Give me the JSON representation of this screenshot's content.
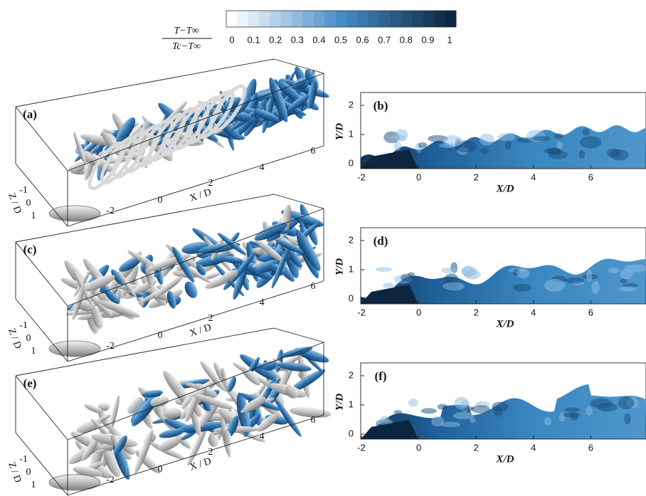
{
  "colorbar": {
    "label_numerator": "T−T∞",
    "label_denominator": "Tc−T∞",
    "ticks": [
      "0",
      "0.1",
      "0.2",
      "0.3",
      "0.4",
      "0.5",
      "0.6",
      "0.7",
      "0.8",
      "0.9",
      "1"
    ]
  },
  "panels_3d": [
    {
      "label": "(a)",
      "x_axis_label": "X / D",
      "z_axis_label": "Z / D",
      "x_ticks": [
        "-2",
        "0",
        "2",
        "4",
        "6"
      ],
      "z_ticks": [
        "-1",
        "0",
        "1"
      ]
    },
    {
      "label": "(c)",
      "x_axis_label": "X / D",
      "z_axis_label": "Z / D",
      "x_ticks": [
        "-2",
        "0",
        "2",
        "4",
        "6"
      ],
      "z_ticks": [
        "-1",
        "0",
        "1"
      ]
    },
    {
      "label": "(e)",
      "x_axis_label": "X / D",
      "z_axis_label": "Z / D",
      "x_ticks": [
        "-2",
        "0",
        "2",
        "4",
        "6"
      ],
      "z_ticks": [
        "-1",
        "0",
        "1"
      ]
    }
  ],
  "panels_2d": [
    {
      "label": "(b)",
      "x_axis_label": "X/D",
      "y_axis_label": "Y/D",
      "x_ticks": [
        "-2",
        "0",
        "2",
        "4",
        "6"
      ],
      "y_ticks": [
        "0",
        "1",
        "2"
      ]
    },
    {
      "label": "(d)",
      "x_axis_label": "X/D",
      "y_axis_label": "Y/D",
      "x_ticks": [
        "-2",
        "0",
        "2",
        "4",
        "6"
      ],
      "y_ticks": [
        "0",
        "1",
        "2"
      ]
    },
    {
      "label": "(f)",
      "x_axis_label": "X/D",
      "y_axis_label": "Y/D",
      "x_ticks": [
        "-2",
        "0",
        "2",
        "4",
        "6"
      ],
      "y_ticks": [
        "0",
        "1",
        "2"
      ]
    }
  ]
}
